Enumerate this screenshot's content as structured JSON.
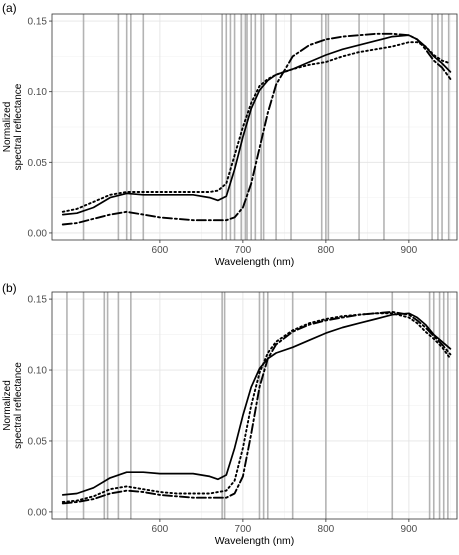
{
  "chart_data": [
    {
      "type": "line",
      "panel_label": "(a)",
      "xlabel": "Wavelength (nm)",
      "ylabel": "Normalized\nspectral reflectance",
      "xlim": [
        470,
        958
      ],
      "ylim": [
        -0.005,
        0.155
      ],
      "xticks": [
        600,
        700,
        800,
        900
      ],
      "yticks": [
        0.0,
        0.05,
        0.1,
        0.15
      ],
      "ytick_labels": [
        "0.00",
        "0.05",
        "0.10",
        "0.15"
      ],
      "grid": true,
      "legend": "none",
      "vlines": [
        508,
        550,
        560,
        565,
        580,
        675,
        680,
        685,
        690,
        698,
        703,
        705,
        710,
        715,
        722,
        725,
        740,
        758,
        795,
        800,
        803,
        840,
        870,
        928,
        935,
        940,
        948
      ],
      "series": [
        {
          "style": "solid",
          "x": [
            483,
            500,
            520,
            540,
            560,
            580,
            600,
            620,
            640,
            660,
            670,
            680,
            690,
            700,
            710,
            720,
            730,
            740,
            760,
            780,
            800,
            820,
            840,
            860,
            880,
            900,
            910,
            920,
            930,
            940,
            950
          ],
          "y": [
            0.013,
            0.014,
            0.018,
            0.025,
            0.028,
            0.027,
            0.027,
            0.027,
            0.027,
            0.025,
            0.023,
            0.026,
            0.045,
            0.068,
            0.088,
            0.101,
            0.108,
            0.112,
            0.116,
            0.121,
            0.126,
            0.13,
            0.133,
            0.136,
            0.139,
            0.14,
            0.137,
            0.132,
            0.125,
            0.12,
            0.114
          ]
        },
        {
          "style": "dotted",
          "x": [
            483,
            500,
            520,
            540,
            560,
            580,
            600,
            620,
            640,
            660,
            670,
            680,
            690,
            700,
            710,
            720,
            730,
            740,
            760,
            780,
            800,
            820,
            840,
            860,
            880,
            900,
            910,
            920,
            930,
            940,
            950
          ],
          "y": [
            0.015,
            0.017,
            0.022,
            0.027,
            0.029,
            0.029,
            0.029,
            0.029,
            0.029,
            0.029,
            0.03,
            0.035,
            0.055,
            0.075,
            0.092,
            0.104,
            0.109,
            0.112,
            0.116,
            0.119,
            0.121,
            0.125,
            0.128,
            0.13,
            0.132,
            0.135,
            0.135,
            0.132,
            0.126,
            0.122,
            0.12
          ]
        },
        {
          "style": "dashdot",
          "x": [
            483,
            500,
            520,
            540,
            560,
            580,
            600,
            620,
            640,
            660,
            680,
            690,
            700,
            710,
            720,
            730,
            740,
            750,
            760,
            780,
            800,
            820,
            840,
            860,
            880,
            900,
            910,
            920,
            930,
            940,
            950
          ],
          "y": [
            0.006,
            0.007,
            0.01,
            0.013,
            0.015,
            0.013,
            0.011,
            0.01,
            0.009,
            0.009,
            0.009,
            0.011,
            0.018,
            0.035,
            0.06,
            0.085,
            0.105,
            0.115,
            0.125,
            0.133,
            0.137,
            0.139,
            0.14,
            0.141,
            0.141,
            0.14,
            0.137,
            0.13,
            0.122,
            0.117,
            0.109
          ]
        }
      ]
    },
    {
      "type": "line",
      "panel_label": "(b)",
      "xlabel": "Wavelength (nm)",
      "ylabel": "Normalized\nspectral reflectance",
      "xlim": [
        470,
        958
      ],
      "ylim": [
        -0.005,
        0.155
      ],
      "xticks": [
        600,
        700,
        800,
        900
      ],
      "yticks": [
        0.0,
        0.05,
        0.1,
        0.15
      ],
      "ytick_labels": [
        "0.00",
        "0.05",
        "0.10",
        "0.15"
      ],
      "grid": true,
      "legend": "none",
      "vlines": [
        488,
        508,
        533,
        537,
        550,
        565,
        675,
        678,
        720,
        725,
        730,
        760,
        800,
        880,
        925,
        930,
        937,
        942,
        947
      ],
      "series": [
        {
          "style": "solid",
          "x": [
            483,
            500,
            520,
            540,
            560,
            580,
            600,
            620,
            640,
            660,
            670,
            680,
            690,
            700,
            710,
            720,
            730,
            740,
            760,
            780,
            800,
            820,
            840,
            860,
            880,
            900,
            910,
            920,
            930,
            940,
            950
          ],
          "y": [
            0.012,
            0.013,
            0.017,
            0.024,
            0.028,
            0.028,
            0.027,
            0.027,
            0.027,
            0.025,
            0.023,
            0.026,
            0.045,
            0.068,
            0.088,
            0.101,
            0.108,
            0.112,
            0.116,
            0.121,
            0.126,
            0.13,
            0.133,
            0.136,
            0.139,
            0.14,
            0.137,
            0.132,
            0.125,
            0.12,
            0.115
          ]
        },
        {
          "style": "dotted",
          "x": [
            483,
            500,
            520,
            540,
            560,
            580,
            600,
            620,
            640,
            660,
            680,
            690,
            700,
            710,
            720,
            730,
            740,
            760,
            780,
            800,
            820,
            840,
            860,
            880,
            900,
            910,
            920,
            930,
            940,
            950
          ],
          "y": [
            0.007,
            0.008,
            0.011,
            0.016,
            0.018,
            0.016,
            0.014,
            0.013,
            0.013,
            0.013,
            0.015,
            0.022,
            0.045,
            0.075,
            0.098,
            0.112,
            0.12,
            0.128,
            0.133,
            0.136,
            0.138,
            0.139,
            0.14,
            0.14,
            0.137,
            0.133,
            0.127,
            0.122,
            0.116,
            0.108
          ]
        },
        {
          "style": "dashdot",
          "x": [
            483,
            500,
            520,
            540,
            560,
            580,
            600,
            620,
            640,
            660,
            680,
            690,
            700,
            710,
            720,
            730,
            740,
            760,
            780,
            800,
            820,
            840,
            860,
            880,
            900,
            910,
            920,
            930,
            940,
            950
          ],
          "y": [
            0.006,
            0.007,
            0.009,
            0.013,
            0.015,
            0.014,
            0.012,
            0.011,
            0.01,
            0.01,
            0.01,
            0.013,
            0.025,
            0.055,
            0.088,
            0.108,
            0.118,
            0.127,
            0.132,
            0.135,
            0.137,
            0.139,
            0.14,
            0.141,
            0.139,
            0.135,
            0.13,
            0.124,
            0.118,
            0.111
          ]
        }
      ]
    }
  ]
}
